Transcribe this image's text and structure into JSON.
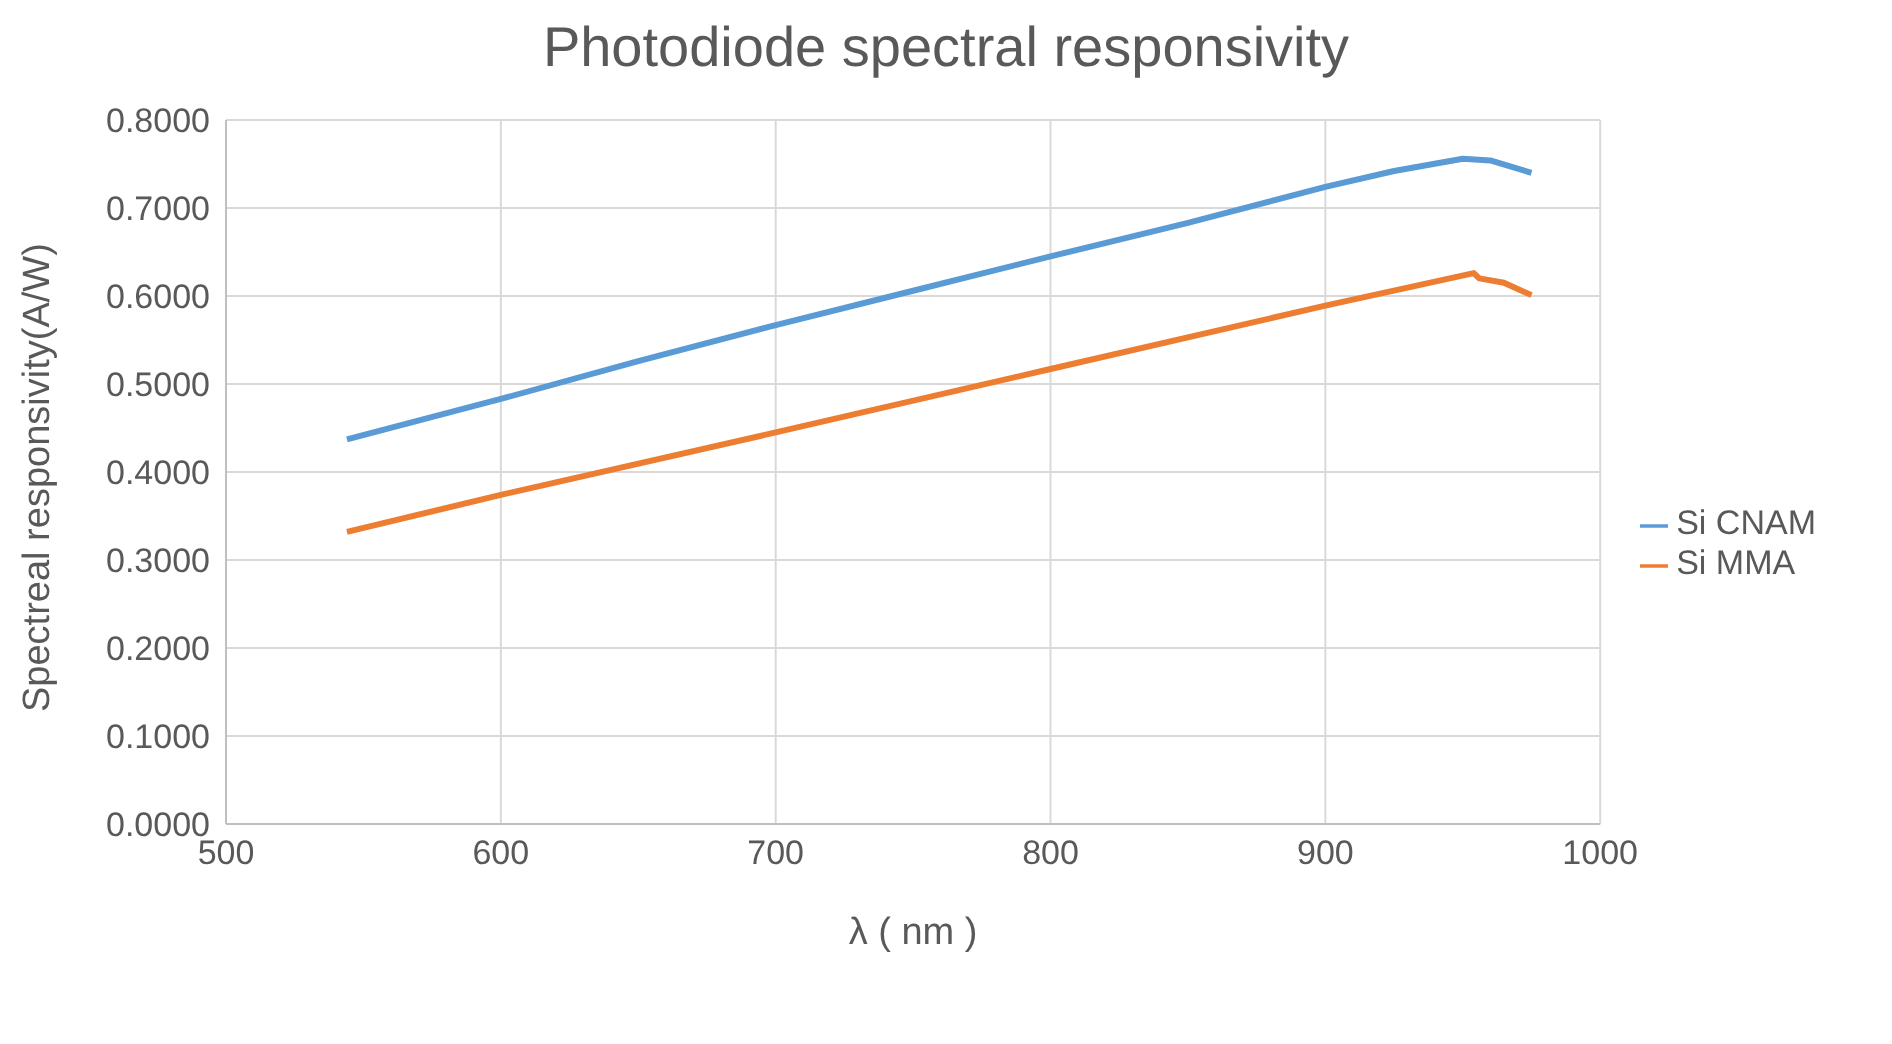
{
  "chart_data": {
    "type": "line",
    "title": "Photodiode spectral responsivity",
    "xlabel": "λ ( nm )",
    "ylabel": "Spectreal responsivity(A/W)",
    "xlim": [
      500,
      1000
    ],
    "xticks": [
      500,
      600,
      700,
      800,
      900,
      1000
    ],
    "ylim": [
      0,
      0.8
    ],
    "yticks": [
      {
        "value": 0,
        "label": "0.0000"
      },
      {
        "value": 0.1,
        "label": "0.1000"
      },
      {
        "value": 0.2,
        "label": "0.2000"
      },
      {
        "value": 0.3,
        "label": "0.3000"
      },
      {
        "value": 0.4,
        "label": "0.4000"
      },
      {
        "value": 0.5,
        "label": "0.5000"
      },
      {
        "value": 0.6,
        "label": "0.6000"
      },
      {
        "value": 0.7,
        "label": "0.7000"
      },
      {
        "value": 0.8,
        "label": "0.8000"
      }
    ],
    "grid": true,
    "legend": "right",
    "marker": "none",
    "line_style": "solid",
    "series": [
      {
        "name": "Si CNAM",
        "color": "#5b9bd5",
        "x": [
          544,
          600,
          650,
          700,
          750,
          800,
          850,
          900,
          925,
          950,
          960,
          975
        ],
        "values": [
          0.437,
          0.483,
          0.526,
          0.567,
          0.606,
          0.645,
          0.683,
          0.724,
          0.742,
          0.756,
          0.754,
          0.74
        ]
      },
      {
        "name": "Si MMA",
        "color": "#ed7d31",
        "x": [
          544,
          600,
          700,
          800,
          900,
          954,
          956,
          965,
          975
        ],
        "values": [
          0.332,
          0.374,
          0.445,
          0.517,
          0.589,
          0.626,
          0.62,
          0.615,
          0.601
        ]
      }
    ]
  }
}
